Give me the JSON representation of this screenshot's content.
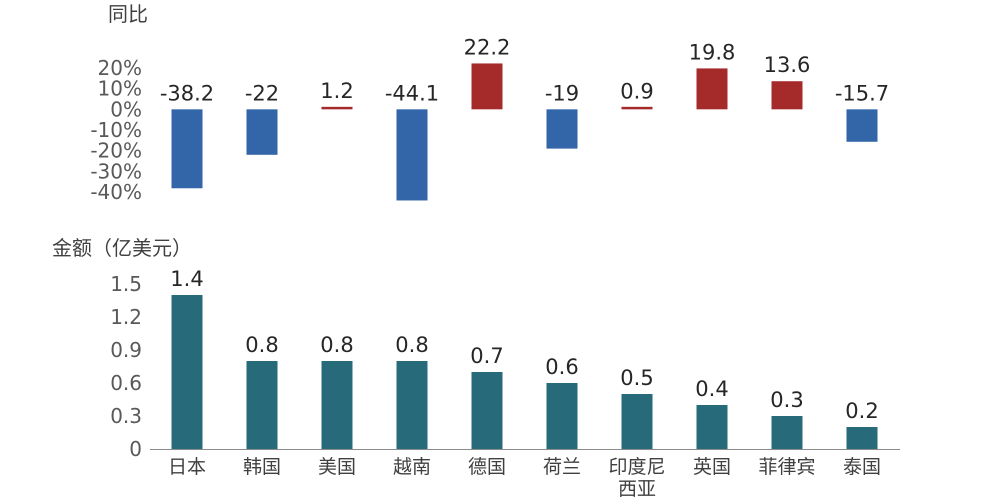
{
  "chart_data": [
    {
      "type": "bar",
      "ylabel": "同比",
      "categories": [
        "日本",
        "韩国",
        "美国",
        "越南",
        "德国",
        "荷兰",
        "印度尼西亚",
        "英国",
        "菲律宾",
        "泰国"
      ],
      "values": [
        -38.2,
        -22,
        1.2,
        -44.1,
        22.2,
        -19,
        0.9,
        19.8,
        13.6,
        -15.7
      ],
      "value_labels": [
        "-38.2",
        "-22",
        "1.2",
        "-44.1",
        "22.2",
        "-19",
        "0.9",
        "19.8",
        "13.6",
        "-15.7"
      ],
      "ylim": [
        -40,
        20
      ],
      "yticks": [
        20,
        10,
        0,
        -10,
        -20,
        -30,
        -40
      ],
      "ytick_labels": [
        "20%",
        "10%",
        "0%",
        "-10%",
        "-20%",
        "-30%",
        "-40%"
      ],
      "colors": {
        "positive": "#A52A2A",
        "negative": "#3366A9"
      },
      "grid": false
    },
    {
      "type": "bar",
      "ylabel": "金额（亿美元）",
      "categories": [
        "日本",
        "韩国",
        "美国",
        "越南",
        "德国",
        "荷兰",
        "印度尼西亚",
        "英国",
        "菲律宾",
        "泰国"
      ],
      "category_lines": [
        [
          "日本"
        ],
        [
          "韩国"
        ],
        [
          "美国"
        ],
        [
          "越南"
        ],
        [
          "德国"
        ],
        [
          "荷兰"
        ],
        [
          "印度尼",
          "西亚"
        ],
        [
          "英国"
        ],
        [
          "菲律宾"
        ],
        [
          "泰国"
        ]
      ],
      "values": [
        1.4,
        0.8,
        0.8,
        0.8,
        0.7,
        0.6,
        0.5,
        0.4,
        0.3,
        0.2
      ],
      "value_labels": [
        "1.4",
        "0.8",
        "0.8",
        "0.8",
        "0.7",
        "0.6",
        "0.5",
        "0.4",
        "0.3",
        "0.2"
      ],
      "ylim": [
        0,
        1.5
      ],
      "yticks": [
        0,
        0.3,
        0.6,
        0.9,
        1.2,
        1.5
      ],
      "ytick_labels": [
        "0",
        "0.3",
        "0.6",
        "0.9",
        "1.2",
        "1.5"
      ],
      "colors": {
        "bar": "#276A7A",
        "axis": "#8C8C8C"
      },
      "grid": false
    }
  ]
}
